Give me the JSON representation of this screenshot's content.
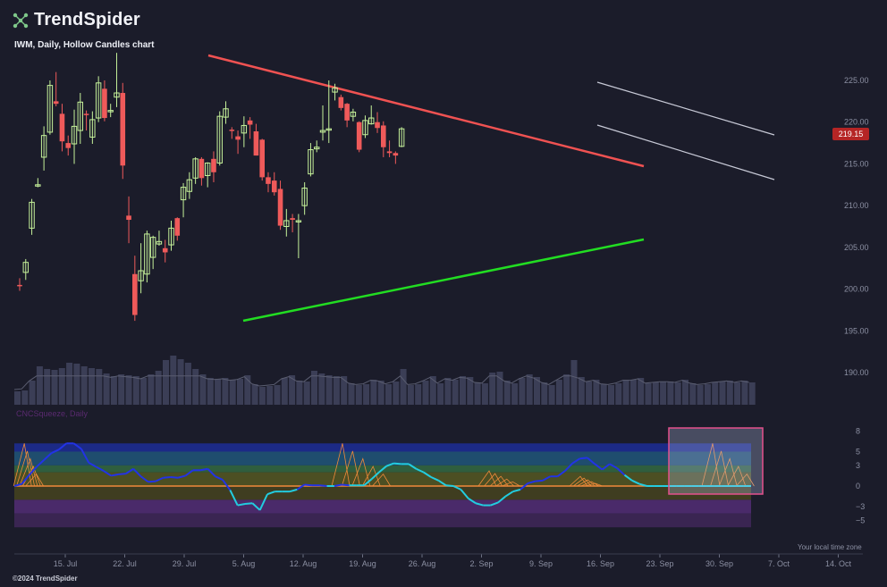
{
  "brand": {
    "name": "TrendSpider",
    "logo_icon": "network-nodes-icon"
  },
  "copyright": "©2024 TrendSpider",
  "timezone_label": "Your local time zone",
  "chart_data": [
    {
      "type": "candlestick",
      "title": "IWM, Daily, Hollow Candles chart",
      "current_price": "219.15",
      "ylim": [
        186.5,
        229
      ],
      "y_ticks": [
        "225.00",
        "220.00",
        "215.00",
        "210.00",
        "205.00",
        "200.00",
        "195.00",
        "190.00"
      ],
      "y_tick_values": [
        225,
        220,
        215,
        210,
        205,
        200,
        195,
        190
      ],
      "x_ticks": [
        "15. Jul",
        "22. Jul",
        "29. Jul",
        "5. Aug",
        "12. Aug",
        "19. Aug",
        "26. Aug",
        "2. Sep",
        "9. Sep",
        "16. Sep",
        "23. Sep",
        "30. Sep",
        "7. Oct",
        "14. Oct"
      ],
      "x_tick_positions": [
        12,
        17,
        22,
        27,
        32,
        37,
        42,
        47,
        52,
        57,
        62,
        67,
        72,
        77
      ],
      "colors": {
        "up": "#c6f29a",
        "down": "#ef5a5a",
        "volume": "#3b3e56",
        "trend_down": "#f05252",
        "trend_up": "#22dd22",
        "channel": "#c7c9d6"
      },
      "candles": [
        [
          0,
          200.5,
          200.4,
          201.3,
          199.8,
          "down"
        ],
        [
          1,
          202.0,
          203.2,
          203.6,
          201.1,
          "up"
        ],
        [
          2,
          207.3,
          210.4,
          210.8,
          206.5,
          "up"
        ],
        [
          3,
          212.4,
          212.5,
          213.3,
          212.2,
          "up"
        ],
        [
          4,
          215.8,
          218.4,
          219.5,
          214.2,
          "up"
        ],
        [
          5,
          218.8,
          224.4,
          225.0,
          218.5,
          "up"
        ],
        [
          6,
          222.5,
          222.2,
          226.0,
          221.9,
          "down"
        ],
        [
          7,
          221.0,
          217.7,
          222.2,
          216.5,
          "down"
        ],
        [
          8,
          217.5,
          216.9,
          218.4,
          216.0,
          "down"
        ],
        [
          9,
          217.4,
          219.5,
          221.5,
          215.0,
          "up"
        ],
        [
          10,
          219.0,
          222.4,
          223.5,
          217.4,
          "up"
        ],
        [
          11,
          221.0,
          221.0,
          221.4,
          219.0,
          "down"
        ],
        [
          12,
          218.2,
          220.3,
          221.3,
          217.4,
          "up"
        ],
        [
          13,
          220.5,
          224.7,
          225.5,
          220.0,
          "up"
        ],
        [
          14,
          224.0,
          220.5,
          225.0,
          220.1,
          "down"
        ],
        [
          15,
          221.3,
          221.4,
          222.2,
          220.6,
          "up"
        ],
        [
          16,
          223.0,
          223.5,
          228.3,
          221.8,
          "up"
        ],
        [
          17,
          223.5,
          214.8,
          224.7,
          213.2,
          "down"
        ],
        [
          18,
          208.8,
          208.3,
          211.1,
          205.5,
          "down"
        ],
        [
          19,
          201.8,
          196.9,
          204.0,
          196.2,
          "down"
        ],
        [
          20,
          201.0,
          202.2,
          205.5,
          199.5,
          "up"
        ],
        [
          21,
          201.8,
          206.6,
          207.0,
          200.8,
          "up"
        ],
        [
          22,
          203.8,
          206.2,
          206.4,
          202.4,
          "up"
        ],
        [
          23,
          205.4,
          205.7,
          207.0,
          205.2,
          "up"
        ],
        [
          24,
          204.9,
          204.4,
          205.9,
          203.2,
          "down"
        ],
        [
          25,
          205.3,
          207.3,
          208.2,
          204.6,
          "up"
        ],
        [
          26,
          208.5,
          206.4,
          208.6,
          205.8,
          "down"
        ],
        [
          27,
          210.7,
          212.2,
          212.7,
          208.6,
          "up"
        ],
        [
          28,
          211.7,
          213.1,
          214.0,
          210.8,
          "up"
        ],
        [
          29,
          213.3,
          215.6,
          215.8,
          212.6,
          "up"
        ],
        [
          30,
          215.6,
          213.3,
          215.8,
          212.4,
          "down"
        ],
        [
          31,
          213.6,
          215.1,
          215.2,
          212.2,
          "up"
        ],
        [
          32,
          215.6,
          214.0,
          216.5,
          212.8,
          "down"
        ],
        [
          33,
          215.1,
          220.7,
          221.3,
          214.8,
          "up"
        ],
        [
          34,
          220.6,
          221.6,
          222.5,
          219.8,
          "up"
        ],
        [
          35,
          219.1,
          219.1,
          219.4,
          218.0,
          "down"
        ],
        [
          36,
          218.3,
          217.9,
          219.0,
          216.2,
          "down"
        ],
        [
          37,
          218.7,
          219.6,
          220.7,
          217.0,
          "up"
        ],
        [
          38,
          220.2,
          219.7,
          220.6,
          218.0,
          "down"
        ],
        [
          39,
          218.9,
          216.0,
          219.8,
          216.0,
          "down"
        ],
        [
          40,
          217.9,
          213.4,
          218.0,
          213.0,
          "down"
        ],
        [
          41,
          213.4,
          212.6,
          214.0,
          211.6,
          "down"
        ],
        [
          42,
          213.0,
          211.6,
          214.0,
          211.2,
          "down"
        ],
        [
          43,
          212.0,
          207.6,
          213.0,
          207.1,
          "down"
        ],
        [
          44,
          207.5,
          208.2,
          209.6,
          206.3,
          "up"
        ],
        [
          45,
          208.5,
          208.3,
          209.0,
          206.8,
          "down"
        ],
        [
          46,
          208.1,
          208.2,
          209.0,
          203.7,
          "up"
        ],
        [
          47,
          210.0,
          212.1,
          212.8,
          208.9,
          "up"
        ],
        [
          48,
          213.8,
          216.7,
          217.5,
          213.5,
          "up"
        ],
        [
          49,
          216.8,
          217.0,
          217.8,
          216.4,
          "up"
        ],
        [
          50,
          218.8,
          219.0,
          222.0,
          217.8,
          "up"
        ],
        [
          51,
          219.1,
          219.2,
          225.0,
          217.5,
          "up"
        ],
        [
          52,
          223.6,
          224.1,
          224.6,
          222.6,
          "up"
        ],
        [
          53,
          223.0,
          221.7,
          223.3,
          221.4,
          "down"
        ],
        [
          54,
          222.2,
          220.2,
          222.3,
          219.4,
          "down"
        ],
        [
          55,
          220.7,
          221.2,
          221.6,
          220.1,
          "up"
        ],
        [
          56,
          220.0,
          216.7,
          220.1,
          216.4,
          "down"
        ],
        [
          57,
          218.5,
          220.2,
          220.8,
          218.1,
          "up"
        ],
        [
          58,
          219.8,
          220.5,
          222.0,
          219.7,
          "up"
        ],
        [
          59,
          220.0,
          219.3,
          221.2,
          218.7,
          "down"
        ],
        [
          60,
          219.6,
          217.0,
          220.1,
          215.8,
          "down"
        ],
        [
          61,
          216.5,
          216.3,
          217.8,
          215.8,
          "down"
        ],
        [
          62,
          216.3,
          216.0,
          216.5,
          215.0,
          "down"
        ],
        [
          63,
          217.1,
          219.2,
          219.4,
          217.0,
          "up"
        ]
      ],
      "volumes": [
        15,
        16,
        27,
        43,
        40,
        39,
        41,
        47,
        46,
        43,
        41,
        40,
        35,
        32,
        34,
        33,
        32,
        30,
        34,
        38,
        50,
        55,
        51,
        47,
        40,
        34,
        30,
        29,
        30,
        28,
        29,
        33,
        23,
        20,
        21,
        22,
        30,
        33,
        27,
        26,
        38,
        35,
        33,
        32,
        32,
        24,
        22,
        23,
        28,
        27,
        23,
        26,
        40,
        22,
        23,
        27,
        32,
        24,
        30,
        28,
        32,
        31,
        25,
        24,
        36,
        37,
        27,
        24,
        30,
        34,
        31,
        25,
        22,
        28,
        34,
        50,
        31,
        26,
        28,
        23,
        22,
        24,
        28,
        28,
        30,
        24,
        25,
        26,
        26,
        25,
        28,
        24,
        22,
        23,
        25,
        26,
        27,
        25,
        27,
        25
      ]
    },
    {
      "type": "line",
      "title": "CNCSqueeze, Daily",
      "ylim": [
        -7,
        8
      ],
      "y_ticks": [
        "8",
        "5",
        "3",
        "0",
        "−3",
        "−5"
      ],
      "y_tick_values": [
        8,
        5,
        3,
        0,
        -3,
        -5
      ],
      "colors": {
        "line_positive": "#2233e6",
        "line_negative": "#22cde0",
        "histogram": "#f08a3a",
        "highlight_box": "#e4508d"
      },
      "series": [
        {
          "values": [
            0,
            0.3,
            1.6,
            2.8,
            3.8,
            4.8,
            5.3,
            6.2,
            6.2,
            5.4,
            3.4,
            2.8,
            2.2,
            1.5,
            1.7,
            1.8,
            2.5,
            1.4,
            0.6,
            0.7,
            1.2,
            1.3,
            1.2,
            1.5,
            2.3,
            2.3,
            2.5,
            1.4,
            0.9,
            -0.6,
            -2.8,
            -2.6,
            -2.5,
            -3.5,
            -1.2,
            -0.8,
            -0.8,
            -0.8,
            -0.5,
            0.2,
            0.1,
            0.1,
            0,
            0,
            0.2,
            0.1,
            0.1,
            0.1,
            1.0,
            2.0,
            2.9,
            3.3,
            3.2,
            3.2,
            2.5,
            2.0,
            1.3,
            0.8,
            0.1,
            0,
            -0.5,
            -1.8,
            -2.5,
            -2.8,
            -2.8,
            -2.4,
            -1.5,
            -0.8,
            -0.5,
            0.4,
            0.7,
            0.8,
            1.4,
            1.4,
            2.2,
            3.3,
            4.0,
            4.1,
            3.2,
            2.4,
            3.2,
            2.6,
            1.6,
            0.8,
            0.3,
            0,
            0,
            0,
            0,
            0,
            0,
            0,
            0,
            0,
            0,
            0,
            0,
            0,
            0,
            0
          ]
        }
      ]
    }
  ]
}
